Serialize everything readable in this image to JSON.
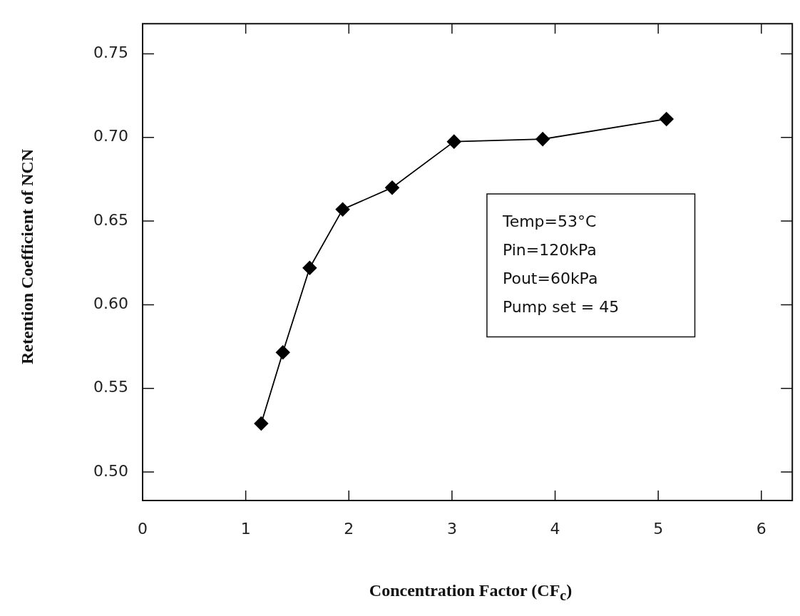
{
  "chart_data": {
    "type": "line",
    "xlabel": "Concentration Factor (CF$_{c}$)",
    "ylabel": "Retention Coefficient of NCN",
    "x": [
      1.15,
      1.36,
      1.62,
      1.94,
      2.42,
      3.02,
      3.88,
      5.08
    ],
    "series": [
      {
        "color": "#000000",
        "values": [
          0.529,
          0.5715,
          0.622,
          0.657,
          0.67,
          0.6975,
          0.699,
          0.711
        ]
      }
    ],
    "xlim": [
      0,
      6.3
    ],
    "xticks": [
      0,
      1,
      2,
      3,
      4,
      5,
      6
    ],
    "ylim": [
      0.483,
      0.768
    ],
    "yticks": [
      {
        "value": 0.5,
        "label": "0.50"
      },
      {
        "value": 0.55,
        "label": "0.55"
      },
      {
        "value": 0.6,
        "label": "0.60"
      },
      {
        "value": 0.65,
        "label": "0.65"
      },
      {
        "value": 0.7,
        "label": "0.70"
      },
      {
        "value": 0.75,
        "label": "0.75"
      }
    ],
    "annotations": [
      "Temp=53°C",
      "Pin=120kPa",
      "Pout=60kPa",
      "Pump set = 45"
    ],
    "marker": "diamond",
    "line_style": "solid",
    "grid": false,
    "legend": false
  }
}
